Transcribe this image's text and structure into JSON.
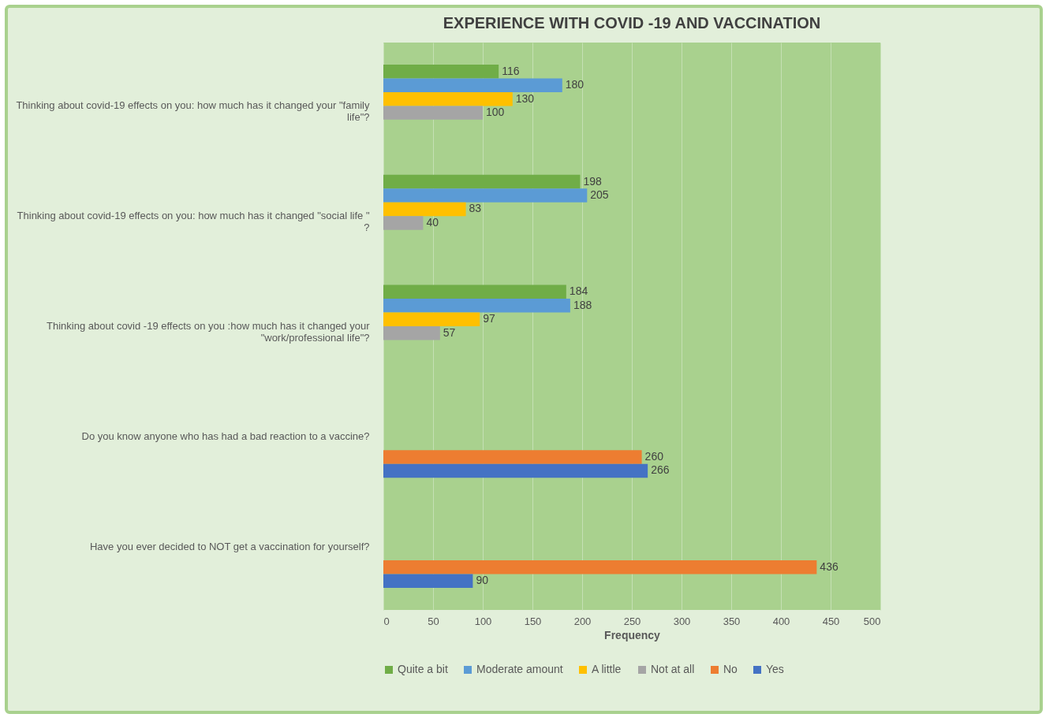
{
  "chart_data": {
    "type": "bar",
    "orientation": "horizontal",
    "title": "EXPERIENCE WITH COVID -19  AND  VACCINATION",
    "xlabel": "Frequency",
    "categories": [
      "Thinking about covid-19 effects on you: how much has it changed  your \"family life\"?",
      "Thinking about covid-19 effects on you: how much has it changed \"social life \" ?",
      "Thinking about covid -19 effects on you :how much has it changed your \"work/professional life\"?",
      "Do you know anyone who has had a bad reaction to a vaccine?",
      "Have you ever decided to NOT get a vaccination for yourself?"
    ],
    "series": [
      {
        "name": "Quite a bit",
        "color": "#70ad47",
        "values": [
          116,
          198,
          184,
          null,
          null
        ]
      },
      {
        "name": "Moderate amount",
        "color": "#5b9bd5",
        "values": [
          180,
          205,
          188,
          null,
          null
        ]
      },
      {
        "name": "A little",
        "color": "#ffc000",
        "values": [
          130,
          83,
          97,
          null,
          null
        ]
      },
      {
        "name": "Not at all",
        "color": "#a5a5a5",
        "values": [
          100,
          40,
          57,
          null,
          null
        ]
      },
      {
        "name": "No",
        "color": "#ed7d31",
        "values": [
          null,
          null,
          null,
          260,
          436
        ]
      },
      {
        "name": "Yes",
        "color": "#4472c4",
        "values": [
          null,
          null,
          null,
          266,
          90
        ]
      }
    ],
    "xlim": [
      0,
      500
    ],
    "xticks": [
      0,
      50,
      100,
      150,
      200,
      250,
      300,
      350,
      400,
      450,
      500
    ],
    "grid": "x",
    "legend": "bottom",
    "data_labels": true
  }
}
